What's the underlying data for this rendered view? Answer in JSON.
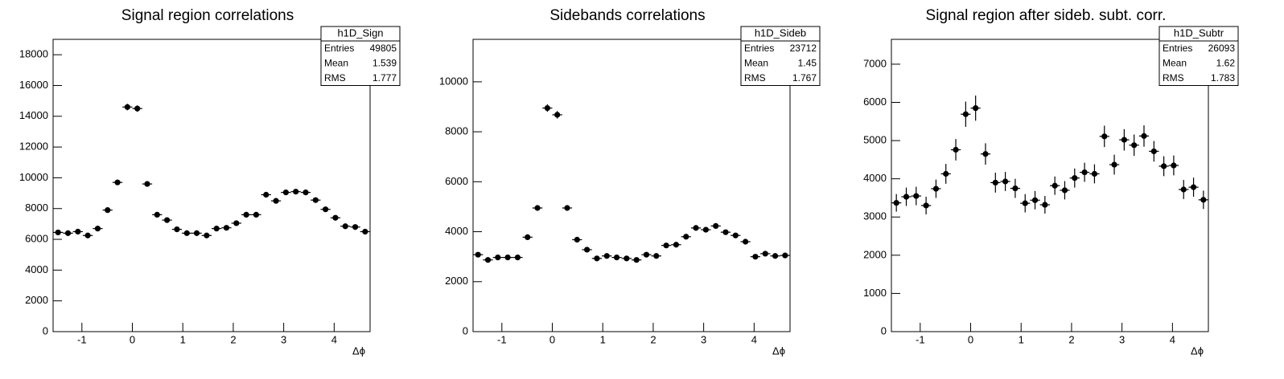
{
  "chart_data": [
    {
      "type": "histogram",
      "title": "Signal region correlations",
      "x_label": "Δϕ",
      "bins": [
        -1.571,
        -1.374,
        -1.178,
        -0.982,
        -0.785,
        -0.589,
        -0.393,
        -0.196,
        0,
        0.196,
        0.393,
        0.589,
        0.785,
        0.982,
        1.178,
        1.374,
        1.571,
        1.767,
        1.963,
        2.16,
        2.356,
        2.553,
        2.749,
        2.945,
        3.142,
        3.338,
        3.534,
        3.731,
        3.927,
        4.123,
        4.32,
        4.516,
        4.712
      ],
      "values": [
        6450,
        6400,
        6500,
        6250,
        6700,
        7900,
        9700,
        14600,
        14500,
        9600,
        7600,
        7250,
        6650,
        6400,
        6400,
        6250,
        6700,
        6750,
        7050,
        7600,
        7600,
        8900,
        8500,
        9050,
        9100,
        9050,
        8550,
        7950,
        7400,
        6850,
        6800,
        6500
      ],
      "errors": [
        130,
        130,
        130,
        130,
        130,
        150,
        170,
        210,
        210,
        170,
        150,
        140,
        130,
        130,
        130,
        130,
        130,
        130,
        140,
        150,
        150,
        160,
        160,
        160,
        160,
        160,
        160,
        150,
        140,
        140,
        130,
        130
      ],
      "xlim": [
        -1.571,
        4.712
      ],
      "xticks": [
        -1,
        0,
        1,
        2,
        3,
        4
      ],
      "ylim": [
        0,
        19000
      ],
      "yticks": [
        0,
        2000,
        4000,
        6000,
        8000,
        10000,
        12000,
        14000,
        16000,
        18000
      ],
      "color": "#000000",
      "stats": {
        "title": "h1D_Sign",
        "rows": [
          [
            "Entries",
            "49805"
          ],
          [
            "Mean",
            "1.539"
          ],
          [
            "RMS",
            "1.777"
          ]
        ]
      }
    },
    {
      "type": "histogram",
      "title": "Sidebands correlations",
      "x_label": "Δϕ",
      "bins": [
        -1.571,
        -1.374,
        -1.178,
        -0.982,
        -0.785,
        -0.589,
        -0.393,
        -0.196,
        0,
        0.196,
        0.393,
        0.589,
        0.785,
        0.982,
        1.178,
        1.374,
        1.571,
        1.767,
        1.963,
        2.16,
        2.356,
        2.553,
        2.749,
        2.945,
        3.142,
        3.338,
        3.534,
        3.731,
        3.927,
        4.123,
        4.32,
        4.516,
        4.712
      ],
      "values": [
        3080,
        2870,
        2970,
        2970,
        2970,
        3780,
        4950,
        8950,
        8680,
        4950,
        3680,
        3280,
        2930,
        3030,
        2970,
        2930,
        2870,
        3080,
        3030,
        3450,
        3480,
        3800,
        4150,
        4080,
        4230,
        3980,
        3850,
        3600,
        3000,
        3120,
        3030,
        3050
      ],
      "errors": [
        90,
        90,
        90,
        90,
        90,
        100,
        110,
        150,
        150,
        110,
        100,
        90,
        90,
        90,
        90,
        90,
        90,
        90,
        90,
        100,
        100,
        100,
        100,
        100,
        100,
        100,
        100,
        100,
        90,
        90,
        90,
        90
      ],
      "xlim": [
        -1.571,
        4.712
      ],
      "xticks": [
        -1,
        0,
        1,
        2,
        3,
        4
      ],
      "ylim": [
        0,
        11700
      ],
      "yticks": [
        0,
        2000,
        4000,
        6000,
        8000,
        10000
      ],
      "color": "#000000",
      "stats": {
        "title": "h1D_Sideb",
        "rows": [
          [
            "Entries",
            "23712"
          ],
          [
            "Mean",
            "1.45"
          ],
          [
            "RMS",
            "1.767"
          ]
        ]
      }
    },
    {
      "type": "histogram",
      "title": "Signal region after sideb. subt. corr.",
      "x_label": "Δϕ",
      "bins": [
        -1.571,
        -1.374,
        -1.178,
        -0.982,
        -0.785,
        -0.589,
        -0.393,
        -0.196,
        0,
        0.196,
        0.393,
        0.589,
        0.785,
        0.982,
        1.178,
        1.374,
        1.571,
        1.767,
        1.963,
        2.16,
        2.356,
        2.553,
        2.749,
        2.945,
        3.142,
        3.338,
        3.534,
        3.731,
        3.927,
        4.123,
        4.32,
        4.516,
        4.712
      ],
      "values": [
        3370,
        3530,
        3550,
        3300,
        3740,
        4130,
        4760,
        5690,
        5850,
        4650,
        3900,
        3930,
        3750,
        3360,
        3440,
        3320,
        3820,
        3700,
        4020,
        4170,
        4130,
        5110,
        4370,
        5020,
        4880,
        5120,
        4720,
        4330,
        4350,
        3720,
        3780,
        3450
      ],
      "errors": [
        230,
        240,
        240,
        230,
        240,
        260,
        280,
        330,
        330,
        280,
        260,
        250,
        250,
        240,
        240,
        230,
        240,
        240,
        250,
        250,
        250,
        280,
        260,
        280,
        280,
        280,
        270,
        260,
        260,
        250,
        250,
        240
      ],
      "xlim": [
        -1.571,
        4.712
      ],
      "xticks": [
        -1,
        0,
        1,
        2,
        3,
        4
      ],
      "ylim": [
        0,
        7650
      ],
      "yticks": [
        0,
        1000,
        2000,
        3000,
        4000,
        5000,
        6000,
        7000
      ],
      "color": "#000000",
      "stats": {
        "title": "h1D_Subtr",
        "rows": [
          [
            "Entries",
            "26093"
          ],
          [
            "Mean",
            "1.62"
          ],
          [
            "RMS",
            "1.783"
          ]
        ]
      }
    }
  ]
}
